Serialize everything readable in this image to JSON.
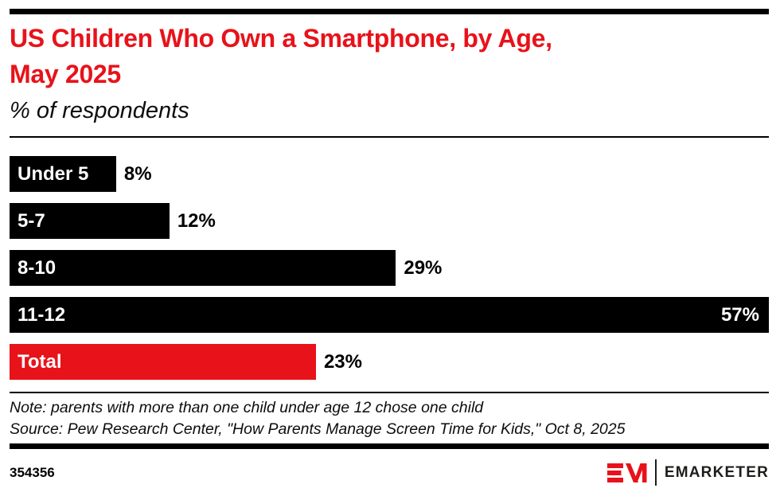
{
  "colors": {
    "red": "#e8121a",
    "black": "#000000",
    "logo_text": "#1d1d1b",
    "background": "#ffffff"
  },
  "header": {
    "title_line1": "US Children Who Own a Smartphone, by Age,",
    "title_line2": "May 2025",
    "subtitle": "% of respondents"
  },
  "chart_data": {
    "type": "bar",
    "orientation": "horizontal",
    "title": "US Children Who Own a Smartphone, by Age, May 2025",
    "subtitle": "% of respondents",
    "unit": "%",
    "xmax": 57,
    "grid": false,
    "legend": false,
    "categories": [
      "Under 5",
      "5-7",
      "8-10",
      "11-12",
      "Total"
    ],
    "values": [
      8,
      12,
      29,
      57,
      23
    ],
    "rows": [
      {
        "label": "Under 5",
        "value": 8,
        "display": "8%",
        "color": "black",
        "value_position": "outside"
      },
      {
        "label": "5-7",
        "value": 12,
        "display": "12%",
        "color": "black",
        "value_position": "outside"
      },
      {
        "label": "8-10",
        "value": 29,
        "display": "29%",
        "color": "black",
        "value_position": "outside"
      },
      {
        "label": "11-12",
        "value": 57,
        "display": "57%",
        "color": "black",
        "value_position": "inside"
      },
      {
        "label": "Total",
        "value": 23,
        "display": "23%",
        "color": "red",
        "value_position": "outside"
      }
    ]
  },
  "footer": {
    "note": "Note: parents with more than one child under age 12 chose one child",
    "source": "Source: Pew Research Center, \"How Parents Manage Screen Time for Kids,\" Oct 8, 2025",
    "chart_id": "354356",
    "logo": {
      "monogram": "EM",
      "wordmark": "EMARKETER"
    }
  }
}
